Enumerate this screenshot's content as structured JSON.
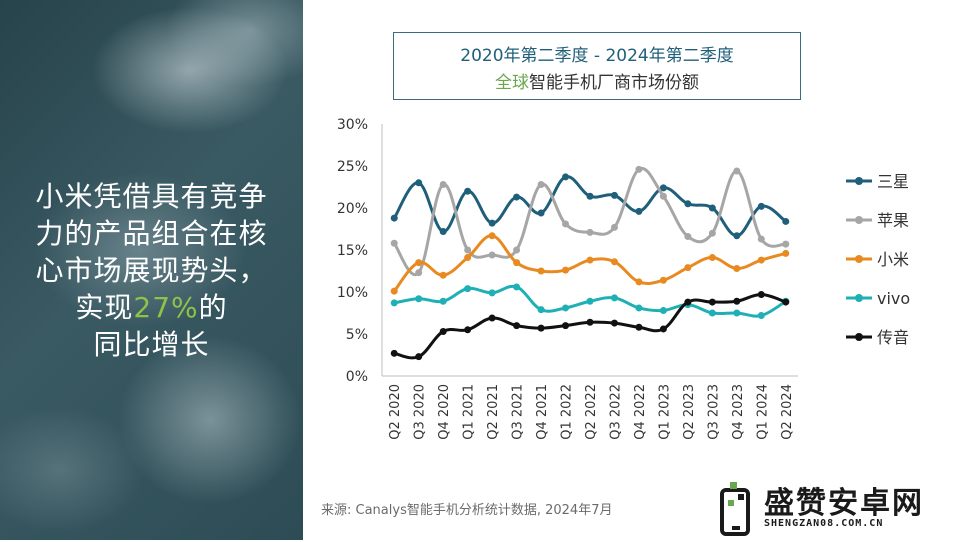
{
  "headline": {
    "line1": "小米凭借具有竞争",
    "line2": "力的产品组合在核",
    "line3": "心市场展现势头，",
    "line4_pre": "实现",
    "line4_hl": "27%",
    "line4_post": "的",
    "line5": "同比增长"
  },
  "source_text": "来源: Canalys智能手机分析统计数据, 2024年7月",
  "logo": {
    "text": "盛赞安卓网",
    "url": "SHENGZAN08.COM.CN"
  },
  "chart_data": {
    "type": "line",
    "title_line1": "2020年第二季度 - 2024年第二季度",
    "title_line2_green": "全球",
    "title_line2_rest": "智能手机厂商市场份额",
    "categories": [
      "Q2 2020",
      "Q3 2020",
      "Q4 2020",
      "Q1 2021",
      "Q2 2021",
      "Q3 2021",
      "Q4 2021",
      "Q1 2022",
      "Q2 2022",
      "Q3 2022",
      "Q4 2022",
      "Q1 2023",
      "Q2 2023",
      "Q3 2023",
      "Q4 2023",
      "Q1 2024",
      "Q2 2024"
    ],
    "y_ticks": [
      "0%",
      "5%",
      "10%",
      "15%",
      "20%",
      "25%",
      "30%"
    ],
    "ylim": [
      0,
      30
    ],
    "grid": false,
    "legend_position": "right",
    "series": [
      {
        "name": "三星",
        "color": "#1f5f7a",
        "values": [
          18.8,
          23.0,
          17.2,
          22.0,
          18.2,
          21.3,
          19.4,
          23.7,
          21.4,
          21.5,
          19.6,
          22.4,
          20.5,
          20.0,
          16.7,
          20.2,
          18.4
        ]
      },
      {
        "name": "苹果",
        "color": "#a6a6a6",
        "values": [
          15.8,
          12.3,
          22.8,
          15.0,
          14.4,
          15.0,
          22.8,
          18.1,
          17.1,
          17.7,
          24.6,
          21.4,
          16.6,
          17.0,
          24.4,
          16.3,
          15.7
        ]
      },
      {
        "name": "小米",
        "color": "#e98a20",
        "values": [
          10.1,
          13.5,
          12.0,
          14.1,
          16.7,
          13.5,
          12.5,
          12.6,
          13.8,
          13.6,
          11.2,
          11.4,
          12.9,
          14.1,
          12.8,
          13.8,
          14.6
        ]
      },
      {
        "name": "vivo",
        "color": "#1fb0b5",
        "values": [
          8.7,
          9.2,
          8.9,
          10.4,
          9.9,
          10.6,
          7.9,
          8.1,
          8.9,
          9.3,
          8.1,
          7.8,
          8.5,
          7.5,
          7.5,
          7.2,
          8.9
        ]
      },
      {
        "name": "传音",
        "color": "#111111",
        "values": [
          2.7,
          2.3,
          5.3,
          5.5,
          6.9,
          6.0,
          5.7,
          6.0,
          6.4,
          6.3,
          5.8,
          5.6,
          8.8,
          8.8,
          8.9,
          9.7,
          8.8
        ]
      }
    ]
  }
}
